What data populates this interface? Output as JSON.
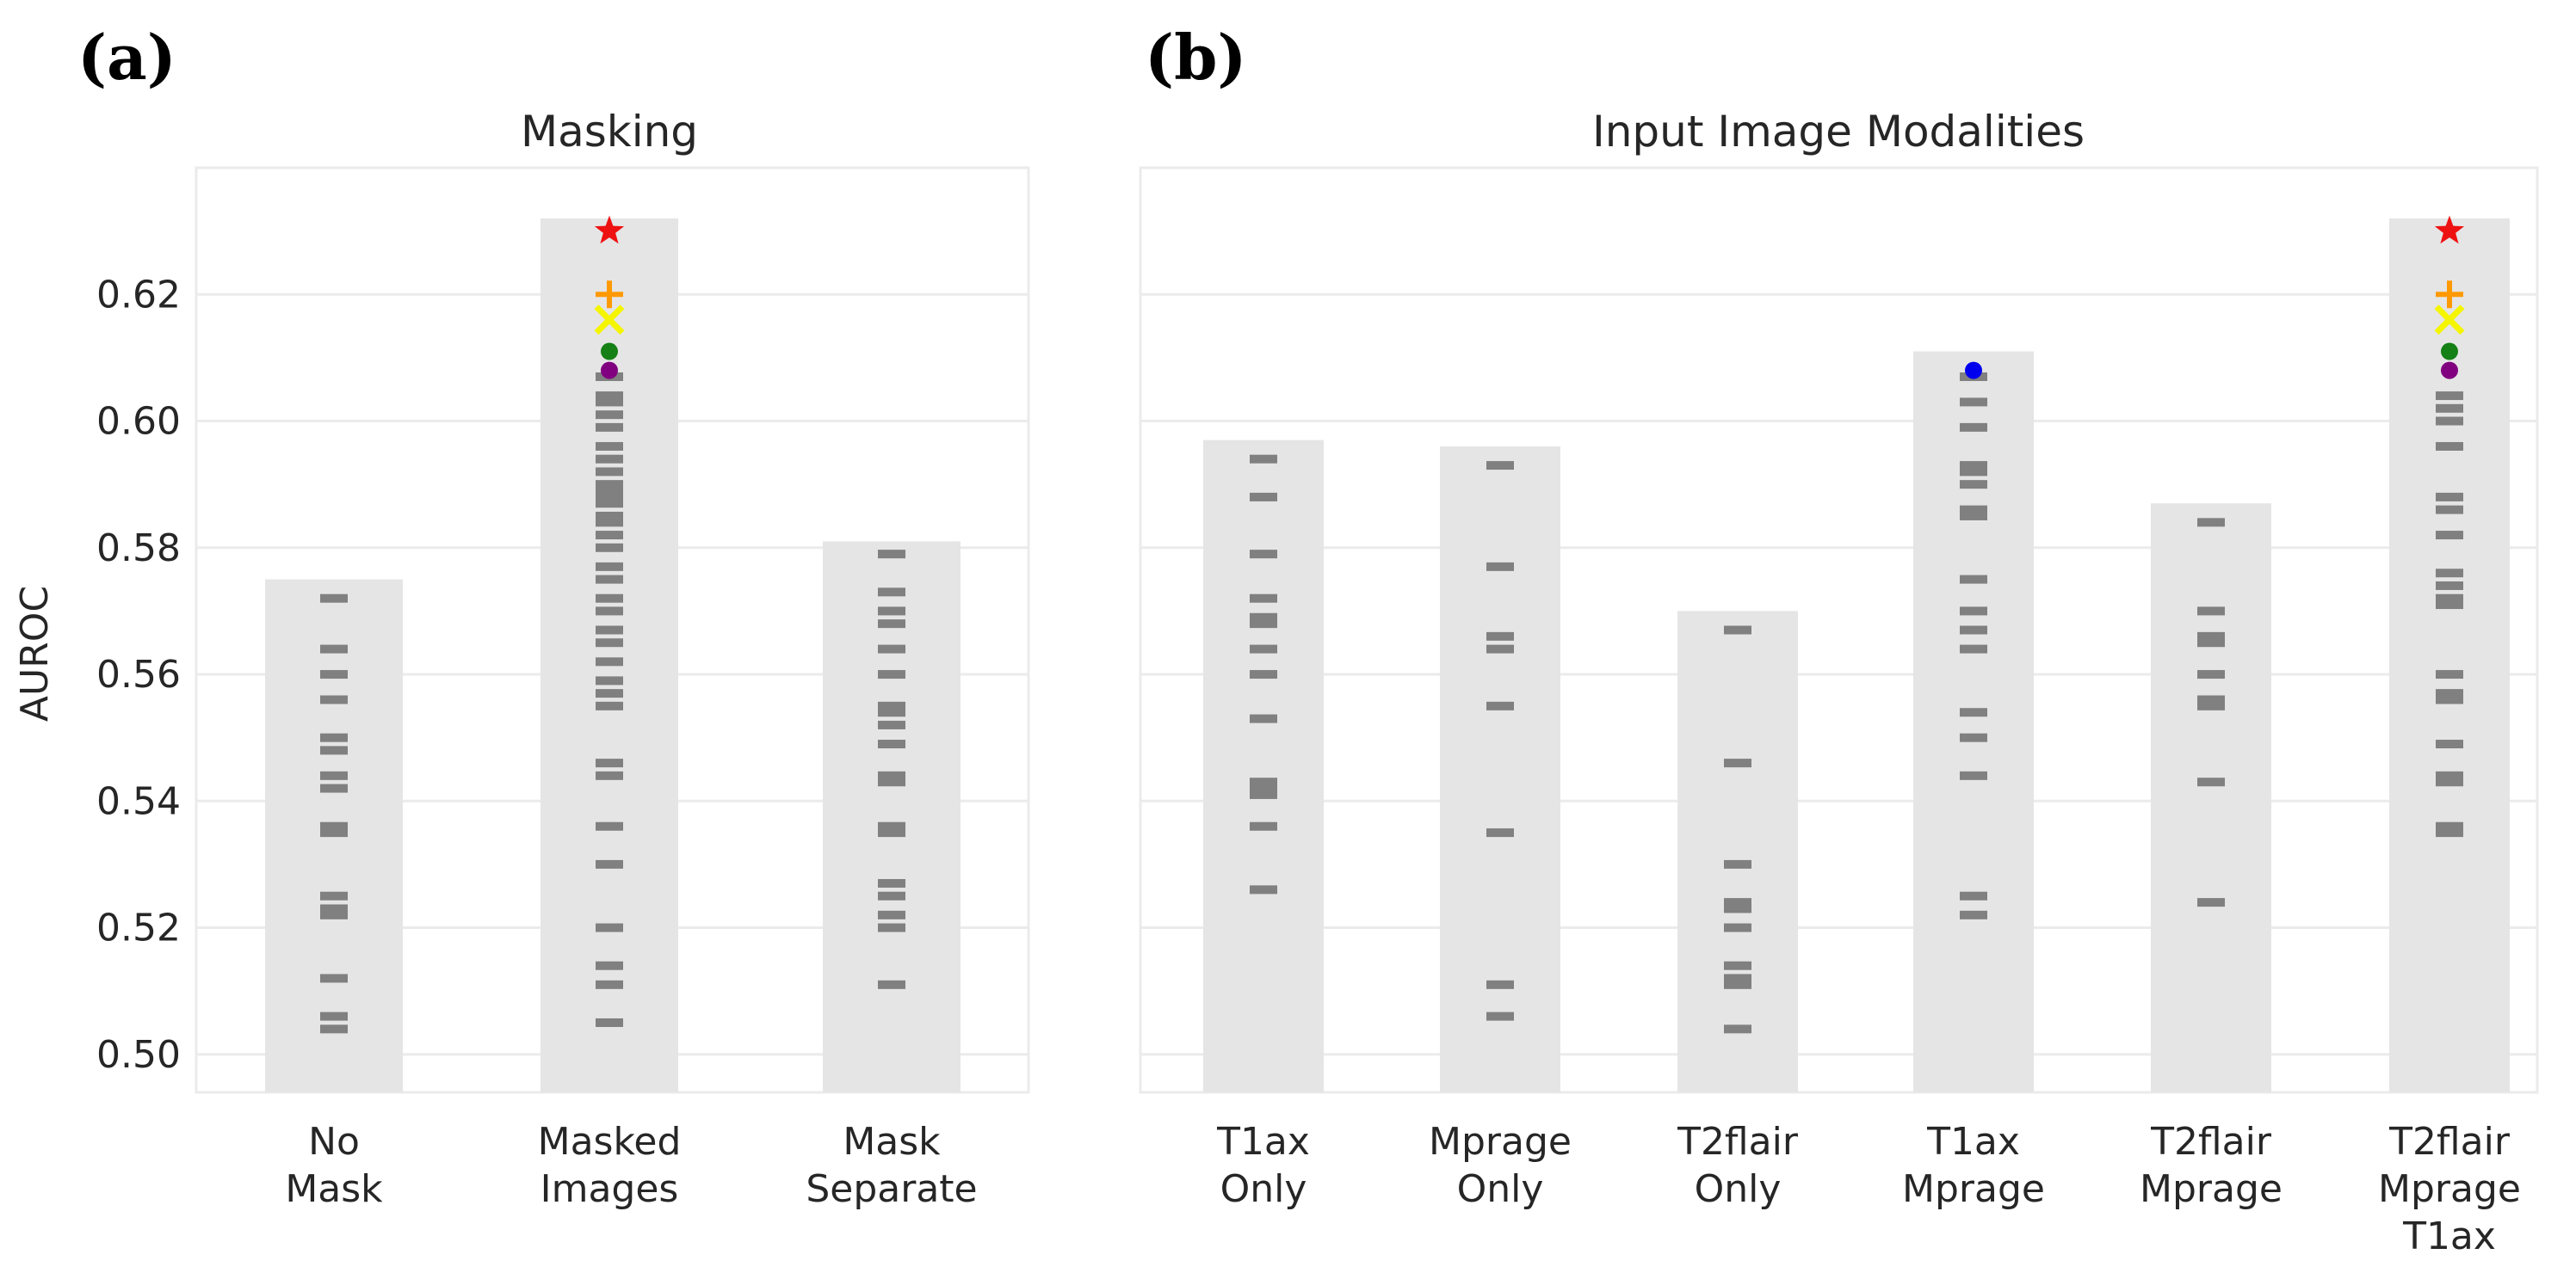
{
  "panels": [
    {
      "letter": "(a)",
      "title": "Masking"
    },
    {
      "letter": "(b)",
      "title": "Input Image Modalities"
    }
  ],
  "colors": {
    "bar": "#e5e5e5",
    "dash": "#808080",
    "grid": "#ebebeb",
    "star": "#ee1111",
    "plus": "#ff9900",
    "x": "#f5f500",
    "dot_green": "#158015",
    "dot_purple": "#800080",
    "dot_blue": "#0000ee"
  },
  "chart_data": [
    {
      "type": "bar",
      "title": "Masking",
      "ylabel": "AUROC",
      "ylim": [
        0.494,
        0.64
      ],
      "yticks": [
        "0.50",
        "0.52",
        "0.54",
        "0.56",
        "0.58",
        "0.60",
        "0.62"
      ],
      "categories": [
        [
          "No",
          "Mask"
        ],
        [
          "Masked",
          "Images"
        ],
        [
          "Mask",
          "Separate"
        ]
      ],
      "values": [
        0.575,
        0.632,
        0.581
      ],
      "points": [
        [
          0.572,
          0.564,
          0.56,
          0.556,
          0.55,
          0.548,
          0.544,
          0.542,
          0.536,
          0.535,
          0.525,
          0.523,
          0.522,
          0.512,
          0.506,
          0.504
        ],
        [
          0.607,
          0.604,
          0.603,
          0.601,
          0.599,
          0.596,
          0.594,
          0.592,
          0.59,
          0.589,
          0.588,
          0.587,
          0.585,
          0.584,
          0.582,
          0.58,
          0.577,
          0.575,
          0.572,
          0.57,
          0.567,
          0.565,
          0.562,
          0.559,
          0.557,
          0.555,
          0.546,
          0.544,
          0.536,
          0.53,
          0.52,
          0.514,
          0.511,
          0.505
        ],
        [
          0.579,
          0.573,
          0.57,
          0.568,
          0.564,
          0.56,
          0.555,
          0.554,
          0.552,
          0.549,
          0.544,
          0.543,
          0.536,
          0.535,
          0.527,
          0.525,
          0.522,
          0.52,
          0.511
        ]
      ],
      "markers": [
        [],
        [
          {
            "shape": "star",
            "value": 0.63,
            "color": "#ee1111"
          },
          {
            "shape": "plus",
            "value": 0.62,
            "color": "#ff9900"
          },
          {
            "shape": "x",
            "value": 0.616,
            "color": "#f5f500"
          },
          {
            "shape": "dot",
            "value": 0.611,
            "color": "#158015"
          },
          {
            "shape": "dot",
            "value": 0.608,
            "color": "#800080"
          }
        ],
        []
      ]
    },
    {
      "type": "bar",
      "title": "Input Image Modalities",
      "ylabel": "",
      "ylim": [
        0.494,
        0.64
      ],
      "categories": [
        [
          "T1ax",
          "Only"
        ],
        [
          "Mprage",
          "Only"
        ],
        [
          "T2flair",
          "Only"
        ],
        [
          "T1ax",
          "Mprage"
        ],
        [
          "T2flair",
          "Mprage"
        ],
        [
          "T2flair",
          "Mprage",
          "T1ax"
        ]
      ],
      "values": [
        0.597,
        0.596,
        0.57,
        0.611,
        0.587,
        0.632
      ],
      "points": [
        [
          0.594,
          0.588,
          0.579,
          0.572,
          0.569,
          0.568,
          0.564,
          0.56,
          0.553,
          0.543,
          0.542,
          0.541,
          0.536,
          0.526
        ],
        [
          0.593,
          0.577,
          0.566,
          0.564,
          0.555,
          0.535,
          0.511,
          0.506
        ],
        [
          0.567,
          0.546,
          0.53,
          0.524,
          0.523,
          0.52,
          0.514,
          0.512,
          0.511,
          0.504
        ],
        [
          0.607,
          0.603,
          0.599,
          0.593,
          0.592,
          0.59,
          0.586,
          0.585,
          0.575,
          0.57,
          0.567,
          0.564,
          0.554,
          0.55,
          0.544,
          0.525,
          0.522
        ],
        [
          0.584,
          0.57,
          0.566,
          0.565,
          0.56,
          0.556,
          0.555,
          0.543,
          0.524
        ],
        [
          0.604,
          0.602,
          0.6,
          0.596,
          0.588,
          0.586,
          0.582,
          0.576,
          0.574,
          0.572,
          0.571,
          0.56,
          0.557,
          0.556,
          0.549,
          0.544,
          0.543,
          0.536,
          0.535
        ]
      ],
      "markers": [
        [],
        [],
        [],
        [
          {
            "shape": "dot",
            "value": 0.608,
            "color": "#0000ee"
          }
        ],
        [],
        [
          {
            "shape": "star",
            "value": 0.63,
            "color": "#ee1111"
          },
          {
            "shape": "plus",
            "value": 0.62,
            "color": "#ff9900"
          },
          {
            "shape": "x",
            "value": 0.616,
            "color": "#f5f500"
          },
          {
            "shape": "dot",
            "value": 0.611,
            "color": "#158015"
          },
          {
            "shape": "dot",
            "value": 0.608,
            "color": "#800080"
          }
        ]
      ]
    }
  ]
}
